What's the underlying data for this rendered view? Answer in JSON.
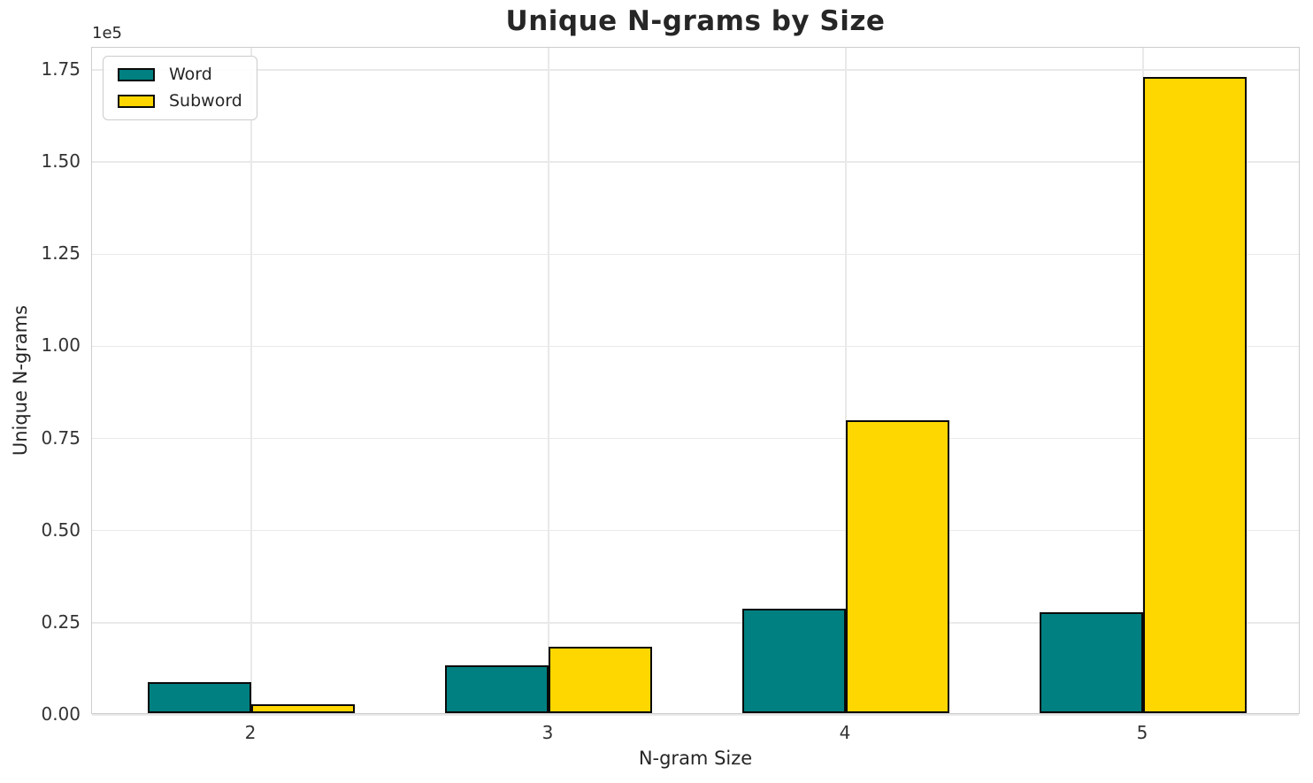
{
  "chart_data": {
    "type": "bar",
    "title": "Unique N-grams by Size",
    "xlabel": "N-gram Size",
    "ylabel": "Unique N-grams",
    "y_offset_text": "1e5",
    "categories": [
      "2",
      "3",
      "4",
      "5"
    ],
    "series": [
      {
        "name": "Word",
        "color": "#008080",
        "values": [
          8400,
          13000,
          28400,
          27300
        ]
      },
      {
        "name": "Subword",
        "color": "#FFD700",
        "values": [
          2400,
          18100,
          79500,
          172500
        ]
      }
    ],
    "yticks": {
      "values": [
        0,
        25000,
        50000,
        75000,
        100000,
        125000,
        150000,
        175000
      ],
      "labels": [
        "0.00",
        "0.25",
        "0.50",
        "0.75",
        "1.00",
        "1.25",
        "1.50",
        "1.75"
      ]
    },
    "ylim": [
      0,
      181000
    ],
    "grid": true,
    "legend_position": "upper left",
    "colors": {
      "bar_edge": "#0a0a0a",
      "grid": "#e9e9e9",
      "spine": "#cdcdcd",
      "text": "#262626"
    }
  }
}
